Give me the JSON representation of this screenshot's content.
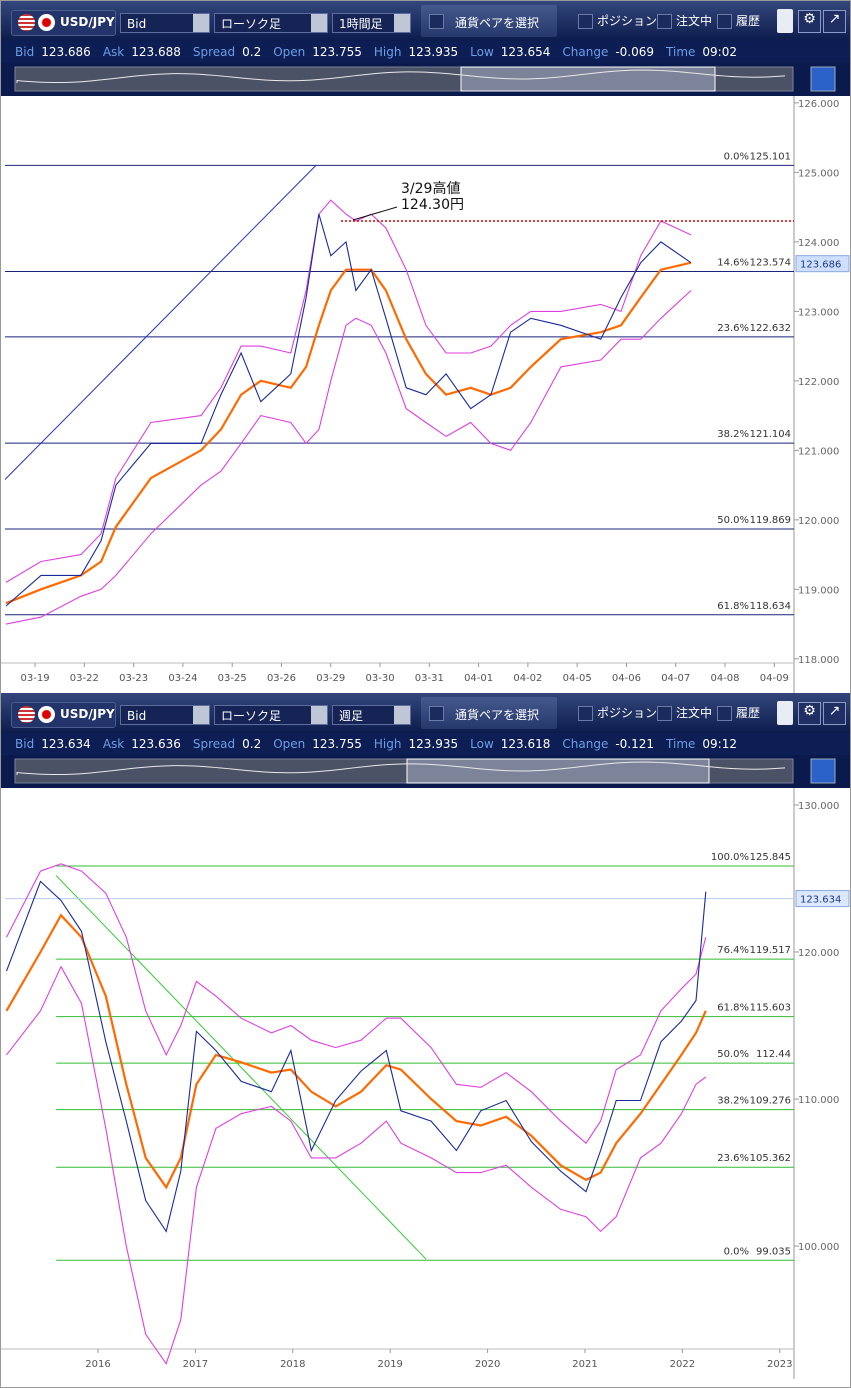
{
  "panels": [
    {
      "toolbar": {
        "symbol": "USD/JPY",
        "price_type": "Bid",
        "chart_kind": "ローソク足",
        "period": "1時間足",
        "pair_select": "通貨ペアを選択",
        "positions": "ポジション",
        "orders": "注文中",
        "history": "履歴"
      },
      "quote": [
        {
          "label": "Bid",
          "value": 123.686
        },
        {
          "label": "Ask",
          "value": 123.688
        },
        {
          "label": "Spread",
          "value": 0.2
        },
        {
          "label": "Open",
          "value": 123.755
        },
        {
          "label": "High",
          "value": 123.935
        },
        {
          "label": "Low",
          "value": 123.654
        },
        {
          "label": "Change",
          "value": -0.069
        },
        {
          "label": "Time",
          "value": "09:02"
        }
      ],
      "chart": {
        "type": "line",
        "xlim": [
          -0.61,
          15.4
        ],
        "ylim": [
          117.94,
          126.07
        ],
        "yticks": [
          {
            "value": 118,
            "label": "118.000"
          },
          {
            "value": 119,
            "label": "119.000"
          },
          {
            "value": 120,
            "label": "120.000"
          },
          {
            "value": 121,
            "label": "121.000"
          },
          {
            "value": 122,
            "label": "122.000"
          },
          {
            "value": 123,
            "label": "123.000"
          },
          {
            "value": 124,
            "label": "124.000"
          },
          {
            "value": 125,
            "label": "125.000"
          },
          {
            "value": 126,
            "label": "126.000"
          }
        ],
        "categories": [
          "03-19",
          "03-22",
          "03-23",
          "03-24",
          "03-25",
          "03-26",
          "03-29",
          "03-30",
          "03-31",
          "04-01",
          "04-02",
          "04-05",
          "04-06",
          "04-07",
          "04-08",
          "04-09"
        ],
        "x": [
          -0.59,
          0.12,
          0.93,
          1.34,
          1.64,
          2.35,
          3.37,
          3.77,
          4.18,
          4.58,
          5.19,
          5.5,
          5.76,
          6.0,
          6.31,
          6.51,
          6.82,
          7.12,
          7.53,
          7.93,
          8.34,
          8.84,
          9.25,
          9.65,
          10.06,
          10.67,
          11.48,
          11.89,
          12.29,
          12.7,
          13.31
        ],
        "series": [
          {
            "color": "#e040e0",
            "values": [
              119.1,
              119.4,
              119.5,
              119.8,
              120.6,
              121.4,
              121.5,
              121.9,
              122.5,
              122.5,
              122.4,
              123.3,
              124.4,
              124.6,
              124.4,
              124.3,
              124.4,
              124.2,
              123.6,
              122.8,
              122.4,
              122.4,
              122.5,
              122.8,
              123.0,
              123.0,
              123.1,
              123.0,
              123.8,
              124.3,
              124.1
            ]
          },
          {
            "color": "#e040e0",
            "values": [
              118.5,
              118.6,
              118.9,
              119.0,
              119.2,
              119.8,
              120.5,
              120.7,
              121.1,
              121.5,
              121.4,
              121.1,
              121.3,
              122.0,
              122.8,
              122.9,
              122.8,
              122.4,
              121.6,
              121.4,
              121.2,
              121.4,
              121.1,
              121.0,
              121.4,
              122.2,
              122.3,
              122.6,
              122.6,
              122.9,
              123.3
            ]
          },
          {
            "color": "#ff6a00",
            "values": [
              118.8,
              119.0,
              119.2,
              119.4,
              119.9,
              120.6,
              121.0,
              121.3,
              121.8,
              122.0,
              121.9,
              122.2,
              122.8,
              123.3,
              123.6,
              123.6,
              123.6,
              123.3,
              122.6,
              122.1,
              121.8,
              121.9,
              121.8,
              121.9,
              122.2,
              122.6,
              122.7,
              122.8,
              123.2,
              123.6,
              123.7
            ]
          },
          {
            "color": "#1a2aa0",
            "values": [
              118.76,
              119.2,
              119.2,
              119.7,
              120.5,
              121.1,
              121.1,
              121.8,
              122.4,
              121.7,
              122.1,
              123.2,
              124.4,
              123.8,
              124.0,
              123.3,
              123.6,
              122.9,
              121.9,
              121.8,
              122.1,
              121.6,
              121.8,
              122.7,
              122.9,
              122.8,
              122.6,
              123.2,
              123.7,
              124.0,
              123.7
            ]
          }
        ],
        "trendline": {
          "x": [
            -0.61,
            5.7
          ],
          "values": [
            120.58,
            125.101
          ],
          "color": "#2233cc"
        },
        "fib_color": "#1a237e",
        "fib": [
          {
            "label": "0.0%",
            "value": 125.101
          },
          {
            "label": "14.6%",
            "value": 123.574
          },
          {
            "label": "23.6%",
            "value": 122.632
          },
          {
            "label": "38.2%",
            "value": 121.104
          },
          {
            "label": "50.0%",
            "value": 119.869
          },
          {
            "label": "61.8%",
            "value": 118.634
          }
        ],
        "current": 123.686,
        "current_color": "#cfe0ff",
        "price_line": false,
        "annotation": {
          "lines": [
            "3/29高値",
            "124.30円"
          ],
          "level": 124.3,
          "color": "#e00000"
        }
      }
    },
    {
      "toolbar": {
        "symbol": "USD/JPY",
        "price_type": "Bid",
        "chart_kind": "ローソク足",
        "period": "週足",
        "pair_select": "通貨ペアを選択",
        "positions": "ポジション",
        "orders": "注文中",
        "history": "履歴"
      },
      "quote": [
        {
          "label": "Bid",
          "value": 123.634
        },
        {
          "label": "Ask",
          "value": 123.636
        },
        {
          "label": "Spread",
          "value": 0.2
        },
        {
          "label": "Open",
          "value": 123.755
        },
        {
          "label": "High",
          "value": 123.935
        },
        {
          "label": "Low",
          "value": 123.618
        },
        {
          "label": "Change",
          "value": -0.121
        },
        {
          "label": "Time",
          "value": "09:12"
        }
      ],
      "chart": {
        "type": "line",
        "xlim": [
          2015.045,
          2023.146
        ],
        "ylim": [
          93.0,
          130.95
        ],
        "yticks": [
          {
            "value": 100,
            "label": "100.000"
          },
          {
            "value": 110,
            "label": "110.000"
          },
          {
            "value": 120,
            "label": "120.000"
          },
          {
            "value": 130,
            "label": "130.000"
          }
        ],
        "xticks": [
          2016,
          2017,
          2018,
          2019,
          2020,
          2021,
          2022,
          2023
        ],
        "x": [
          2015.06,
          2015.41,
          2015.62,
          2015.83,
          2016.08,
          2016.29,
          2016.49,
          2016.7,
          2016.85,
          2017.01,
          2017.21,
          2017.47,
          2017.78,
          2017.98,
          2018.19,
          2018.44,
          2018.7,
          2018.96,
          2019.11,
          2019.42,
          2019.68,
          2019.93,
          2020.19,
          2020.45,
          2020.75,
          2021.01,
          2021.16,
          2021.32,
          2021.57,
          2021.78,
          2021.99,
          2022.14,
          2022.24
        ],
        "series": [
          {
            "color": "#e040e0",
            "values": [
              121,
              125.5,
              126,
              125.5,
              124,
              121,
              116,
              113,
              115,
              118,
              117,
              115.5,
              114.5,
              115,
              114,
              113.5,
              114,
              115.5,
              115.5,
              113.5,
              111,
              110.8,
              111.8,
              110.5,
              108.5,
              107,
              108.5,
              112,
              113,
              116,
              117.5,
              118.5,
              121
            ]
          },
          {
            "color": "#e040e0",
            "values": [
              113,
              116,
              119,
              116.5,
              108,
              100,
              94,
              92,
              95,
              104,
              108,
              109,
              109.5,
              108.5,
              106,
              106,
              107,
              108.5,
              107,
              106,
              105,
              105,
              105.5,
              104,
              102.5,
              102,
              101,
              102,
              106,
              107,
              109,
              111,
              111.5
            ]
          },
          {
            "color": "#ff6a00",
            "values": [
              116,
              120,
              122.5,
              121,
              117,
              111,
              106,
              104,
              106,
              111,
              113,
              112.5,
              111.8,
              112,
              110.5,
              109.5,
              110.5,
              112.3,
              112,
              110,
              108.5,
              108.2,
              108.8,
              107.5,
              105.5,
              104.5,
              105,
              107,
              109,
              111,
              113,
              114.5,
              116
            ]
          },
          {
            "color": "#1a2aa0",
            "values": [
              118.7,
              124.8,
              123.5,
              121.4,
              113.9,
              108.5,
              103.1,
              101.0,
              105.1,
              114.6,
              113.3,
              111.2,
              110.5,
              113.3,
              106.5,
              109.9,
              111.9,
              113.3,
              109.2,
              108.5,
              106.5,
              109.2,
              109.9,
              107.1,
              105.1,
              103.7,
              106.5,
              109.9,
              109.9,
              113.9,
              115.3,
              116.7,
              124.1
            ]
          }
        ],
        "trendline": {
          "x": [
            2015.57,
            2019.37
          ],
          "values": [
            125.2,
            99.1
          ],
          "color": "#33cc33"
        },
        "fib_color": "#33bb33",
        "fib": [
          {
            "label": "100.0%",
            "value": 125.845
          },
          {
            "label": "76.4%",
            "value": 119.517
          },
          {
            "label": "61.8%",
            "value": 115.603
          },
          {
            "label": "50.0%",
            "value": 112.44
          },
          {
            "label": "38.2%",
            "value": 109.276
          },
          {
            "label": "23.6%",
            "value": 105.362
          },
          {
            "label": "0.0%",
            "value": 99.035
          }
        ],
        "current": 123.634,
        "current_color": "#dbe8ff",
        "price_line": true
      }
    }
  ]
}
